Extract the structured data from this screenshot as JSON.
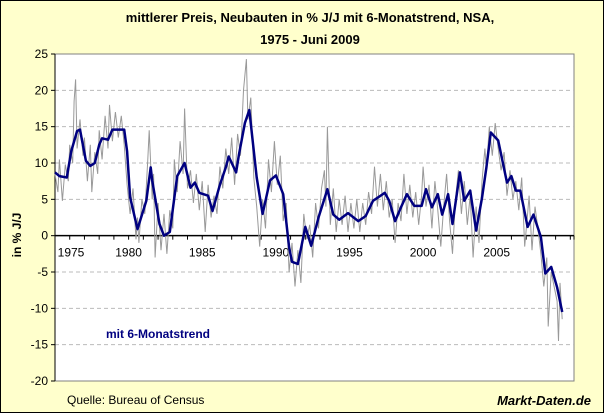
{
  "chart_data": {
    "type": "line",
    "title": "mittlerer Preis, Neubauten in % J/J mit 6-Monatstrend, NSA,",
    "subtitle": "1975 - Juni 2009",
    "ylabel": "in % J/J",
    "xlabel": "",
    "ylim": [
      -20,
      25
    ],
    "xlim": [
      1975,
      2010.25
    ],
    "yticks": [
      25,
      20,
      15,
      10,
      5,
      0,
      -5,
      -10,
      -15,
      -20
    ],
    "xticks": [
      1975,
      1980,
      1985,
      1990,
      1995,
      2000,
      2005
    ],
    "grid": "horizontal dashed",
    "legend_text": "mit 6-Monatstrend",
    "source": "Quelle: Bureau of Census",
    "brand": "Markt-Daten.de",
    "colors": {
      "raw": "#999999",
      "trend": "#000080",
      "background": "#FFFFCC",
      "plot": "#FFFFFF"
    },
    "series": [
      {
        "role": "raw",
        "points": [
          [
            1975.0,
            8.5
          ],
          [
            1975.2,
            6.0
          ],
          [
            1975.3,
            10.5
          ],
          [
            1975.5,
            4.8
          ],
          [
            1975.7,
            9.8
          ],
          [
            1975.9,
            7.5
          ],
          [
            1976.0,
            12.5
          ],
          [
            1976.2,
            10.0
          ],
          [
            1976.3,
            18.5
          ],
          [
            1976.4,
            21.5
          ],
          [
            1976.5,
            12.0
          ],
          [
            1976.7,
            16.0
          ],
          [
            1976.9,
            11.0
          ],
          [
            1977.0,
            13.5
          ],
          [
            1977.2,
            7.5
          ],
          [
            1977.4,
            12.5
          ],
          [
            1977.5,
            6.0
          ],
          [
            1977.7,
            11.5
          ],
          [
            1977.9,
            8.5
          ],
          [
            1978.0,
            14.5
          ],
          [
            1978.2,
            10.5
          ],
          [
            1978.4,
            16.5
          ],
          [
            1978.6,
            12.0
          ],
          [
            1978.7,
            18.0
          ],
          [
            1978.9,
            13.0
          ],
          [
            1979.1,
            17.0
          ],
          [
            1979.3,
            13.5
          ],
          [
            1979.5,
            16.5
          ],
          [
            1979.7,
            12.5
          ],
          [
            1979.9,
            7.0
          ],
          [
            1980.1,
            3.0
          ],
          [
            1980.3,
            6.5
          ],
          [
            1980.5,
            -0.5
          ],
          [
            1980.6,
            2.5
          ],
          [
            1980.7,
            -1.0
          ],
          [
            1980.9,
            5.0
          ],
          [
            1981.1,
            3.0
          ],
          [
            1981.3,
            10.5
          ],
          [
            1981.4,
            14.5
          ],
          [
            1981.6,
            5.0
          ],
          [
            1981.7,
            8.5
          ],
          [
            1981.8,
            -3.0
          ],
          [
            1982.0,
            4.5
          ],
          [
            1982.2,
            -2.0
          ],
          [
            1982.4,
            3.0
          ],
          [
            1982.6,
            -2.5
          ],
          [
            1982.8,
            3.5
          ],
          [
            1983.0,
            1.0
          ],
          [
            1983.1,
            10.5
          ],
          [
            1983.3,
            6.0
          ],
          [
            1983.5,
            13.0
          ],
          [
            1983.7,
            8.5
          ],
          [
            1983.8,
            17.5
          ],
          [
            1984.0,
            6.5
          ],
          [
            1984.2,
            9.0
          ],
          [
            1984.4,
            4.5
          ],
          [
            1984.6,
            8.5
          ],
          [
            1984.8,
            3.5
          ],
          [
            1985.0,
            7.5
          ],
          [
            1985.2,
            0.5
          ],
          [
            1985.4,
            7.0
          ],
          [
            1985.6,
            2.5
          ],
          [
            1985.8,
            5.5
          ],
          [
            1986.0,
            3.0
          ],
          [
            1986.2,
            9.5
          ],
          [
            1986.4,
            6.5
          ],
          [
            1986.6,
            12.0
          ],
          [
            1986.8,
            8.5
          ],
          [
            1987.0,
            13.5
          ],
          [
            1987.2,
            7.0
          ],
          [
            1987.4,
            14.0
          ],
          [
            1987.6,
            11.0
          ],
          [
            1987.8,
            20.0
          ],
          [
            1988.0,
            24.3
          ],
          [
            1988.1,
            16.0
          ],
          [
            1988.3,
            19.0
          ],
          [
            1988.5,
            8.0
          ],
          [
            1988.7,
            4.0
          ],
          [
            1988.9,
            -1.5
          ],
          [
            1989.1,
            5.0
          ],
          [
            1989.3,
            1.0
          ],
          [
            1989.5,
            10.5
          ],
          [
            1989.7,
            6.0
          ],
          [
            1989.9,
            13.0
          ],
          [
            1990.1,
            7.0
          ],
          [
            1990.3,
            11.0
          ],
          [
            1990.5,
            2.0
          ],
          [
            1990.7,
            4.5
          ],
          [
            1990.9,
            -5.0
          ],
          [
            1991.1,
            -1.0
          ],
          [
            1991.3,
            -7.0
          ],
          [
            1991.5,
            -2.0
          ],
          [
            1991.7,
            -6.5
          ],
          [
            1991.9,
            3.0
          ],
          [
            1992.1,
            -0.5
          ],
          [
            1992.3,
            1.5
          ],
          [
            1992.5,
            -3.0
          ],
          [
            1992.7,
            4.5
          ],
          [
            1992.9,
            1.0
          ],
          [
            1993.1,
            6.5
          ],
          [
            1993.3,
            9.0
          ],
          [
            1993.4,
            4.0
          ],
          [
            1993.5,
            15.0
          ],
          [
            1993.7,
            1.5
          ],
          [
            1993.9,
            6.5
          ],
          [
            1994.1,
            0.5
          ],
          [
            1994.3,
            5.0
          ],
          [
            1994.5,
            1.5
          ],
          [
            1994.7,
            5.5
          ],
          [
            1994.9,
            0.5
          ],
          [
            1995.1,
            4.5
          ],
          [
            1995.3,
            1.0
          ],
          [
            1995.5,
            5.0
          ],
          [
            1995.7,
            0.5
          ],
          [
            1995.9,
            4.5
          ],
          [
            1996.1,
            1.5
          ],
          [
            1996.3,
            6.0
          ],
          [
            1996.5,
            3.0
          ],
          [
            1996.7,
            9.5
          ],
          [
            1996.9,
            4.0
          ],
          [
            1997.1,
            8.5
          ],
          [
            1997.3,
            3.5
          ],
          [
            1997.5,
            7.5
          ],
          [
            1997.7,
            2.5
          ],
          [
            1997.9,
            5.0
          ],
          [
            1998.1,
            -1.0
          ],
          [
            1998.3,
            4.5
          ],
          [
            1998.5,
            2.0
          ],
          [
            1998.7,
            8.5
          ],
          [
            1998.9,
            3.0
          ],
          [
            1999.1,
            7.0
          ],
          [
            1999.3,
            2.5
          ],
          [
            1999.5,
            6.0
          ],
          [
            1999.7,
            1.5
          ],
          [
            1999.9,
            5.5
          ],
          [
            2000.0,
            9.5
          ],
          [
            2000.2,
            4.0
          ],
          [
            2000.4,
            7.0
          ],
          [
            2000.6,
            1.0
          ],
          [
            2000.8,
            7.5
          ],
          [
            2001.0,
            3.5
          ],
          [
            2001.2,
            -1.5
          ],
          [
            2001.4,
            4.0
          ],
          [
            2001.6,
            8.5
          ],
          [
            2001.8,
            2.0
          ],
          [
            2002.0,
            -2.5
          ],
          [
            2002.2,
            5.0
          ],
          [
            2002.4,
            9.0
          ],
          [
            2002.6,
            3.0
          ],
          [
            2002.8,
            7.5
          ],
          [
            2003.0,
            1.5
          ],
          [
            2003.2,
            5.5
          ],
          [
            2003.4,
            -3.0
          ],
          [
            2003.6,
            4.0
          ],
          [
            2003.8,
            -1.0
          ],
          [
            2004.0,
            7.5
          ],
          [
            2004.2,
            12.0
          ],
          [
            2004.3,
            9.0
          ],
          [
            2004.5,
            15.0
          ],
          [
            2004.7,
            11.0
          ],
          [
            2004.9,
            15.5
          ],
          [
            2005.1,
            12.0
          ],
          [
            2005.3,
            9.0
          ],
          [
            2005.5,
            11.5
          ],
          [
            2005.7,
            5.5
          ],
          [
            2005.9,
            9.0
          ],
          [
            2006.1,
            5.0
          ],
          [
            2006.3,
            7.5
          ],
          [
            2006.5,
            3.5
          ],
          [
            2006.7,
            8.0
          ],
          [
            2006.9,
            -1.5
          ],
          [
            2007.1,
            3.0
          ],
          [
            2007.2,
            5.5
          ],
          [
            2007.4,
            -2.0
          ],
          [
            2007.6,
            4.0
          ],
          [
            2007.8,
            1.0
          ],
          [
            2008.0,
            -2.5
          ],
          [
            2008.2,
            -7.0
          ],
          [
            2008.4,
            -3.0
          ],
          [
            2008.5,
            -12.5
          ],
          [
            2008.7,
            -5.0
          ],
          [
            2008.9,
            -7.0
          ],
          [
            2009.1,
            -9.0
          ],
          [
            2009.2,
            -14.5
          ],
          [
            2009.3,
            -6.5
          ],
          [
            2009.45,
            -11.5
          ]
        ]
      },
      {
        "role": "trend",
        "name": "mit 6-Monatstrend",
        "points": [
          [
            1975.0,
            8.7
          ],
          [
            1975.3,
            8.2
          ],
          [
            1975.8,
            8.0
          ],
          [
            1976.1,
            11.6
          ],
          [
            1976.5,
            14.4
          ],
          [
            1976.7,
            14.6
          ],
          [
            1977.1,
            10.3
          ],
          [
            1977.4,
            9.6
          ],
          [
            1977.7,
            10.0
          ],
          [
            1978.0,
            12.5
          ],
          [
            1978.2,
            13.4
          ],
          [
            1978.6,
            13.2
          ],
          [
            1978.9,
            14.6
          ],
          [
            1979.7,
            14.6
          ],
          [
            1979.9,
            11.6
          ],
          [
            1980.1,
            5.3
          ],
          [
            1980.6,
            0.9
          ],
          [
            1981.2,
            4.8
          ],
          [
            1981.5,
            9.4
          ],
          [
            1981.6,
            7.6
          ],
          [
            1982.1,
            1.6
          ],
          [
            1982.4,
            0.0
          ],
          [
            1982.8,
            0.5
          ],
          [
            1983.3,
            8.2
          ],
          [
            1983.8,
            10.0
          ],
          [
            1984.2,
            6.6
          ],
          [
            1984.5,
            7.3
          ],
          [
            1984.8,
            5.9
          ],
          [
            1985.4,
            5.5
          ],
          [
            1985.7,
            3.4
          ],
          [
            1986.2,
            7.0
          ],
          [
            1986.6,
            9.4
          ],
          [
            1986.8,
            10.9
          ],
          [
            1987.3,
            8.7
          ],
          [
            1987.5,
            11.2
          ],
          [
            1987.9,
            15.5
          ],
          [
            1988.2,
            17.3
          ],
          [
            1988.7,
            8.0
          ],
          [
            1989.1,
            3.0
          ],
          [
            1989.6,
            7.6
          ],
          [
            1990.0,
            8.3
          ],
          [
            1990.5,
            5.7
          ],
          [
            1990.9,
            -1.6
          ],
          [
            1991.1,
            -3.6
          ],
          [
            1991.5,
            -3.9
          ],
          [
            1992.0,
            1.2
          ],
          [
            1992.4,
            -1.4
          ],
          [
            1992.9,
            2.5
          ],
          [
            1993.5,
            6.4
          ],
          [
            1993.9,
            2.9
          ],
          [
            1994.3,
            2.2
          ],
          [
            1994.9,
            3.1
          ],
          [
            1995.6,
            2.0
          ],
          [
            1996.1,
            2.7
          ],
          [
            1996.6,
            4.8
          ],
          [
            1997.4,
            5.9
          ],
          [
            1997.7,
            4.8
          ],
          [
            1998.1,
            2.0
          ],
          [
            1998.5,
            3.9
          ],
          [
            1998.9,
            5.7
          ],
          [
            1999.4,
            4.1
          ],
          [
            1999.9,
            4.1
          ],
          [
            2000.2,
            6.4
          ],
          [
            2000.6,
            3.9
          ],
          [
            2001.0,
            5.7
          ],
          [
            2001.3,
            2.9
          ],
          [
            2001.7,
            5.7
          ],
          [
            2002.0,
            1.6
          ],
          [
            2002.5,
            8.7
          ],
          [
            2002.8,
            4.8
          ],
          [
            2003.2,
            6.2
          ],
          [
            2003.6,
            0.7
          ],
          [
            2004.0,
            5.2
          ],
          [
            2004.3,
            9.4
          ],
          [
            2004.6,
            14.2
          ],
          [
            2005.1,
            13.1
          ],
          [
            2005.7,
            7.3
          ],
          [
            2006.0,
            8.2
          ],
          [
            2006.3,
            6.2
          ],
          [
            2006.6,
            6.2
          ],
          [
            2007.1,
            1.2
          ],
          [
            2007.5,
            2.9
          ],
          [
            2008.0,
            -0.2
          ],
          [
            2008.3,
            -5.2
          ],
          [
            2008.7,
            -4.3
          ],
          [
            2009.1,
            -7.1
          ],
          [
            2009.45,
            -10.5
          ]
        ]
      }
    ]
  }
}
